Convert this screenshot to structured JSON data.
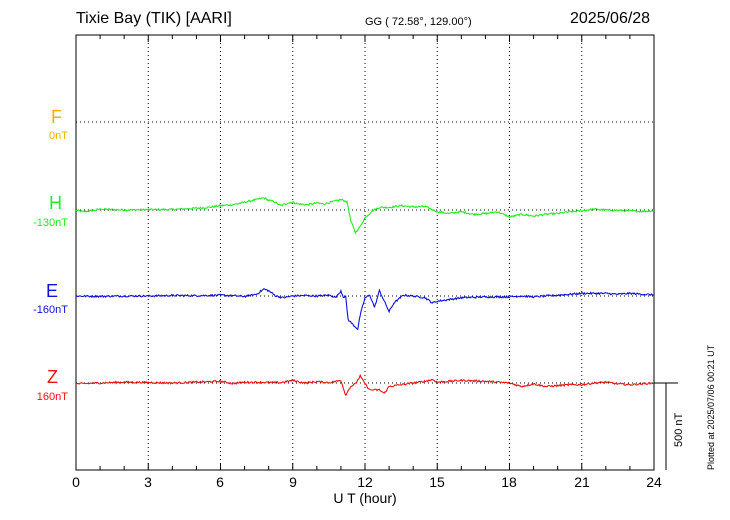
{
  "header": {
    "station": "Tixie Bay (TIK)  [AARI]",
    "coords": "GG ( 72.58°, 129.00°)",
    "date": "2025/06/28"
  },
  "plotted_at": "Plotted at 2025/07/06 00:21 UT",
  "chart_data": {
    "type": "line",
    "xlabel": "U T (hour)",
    "xlim": [
      0,
      24
    ],
    "xticks": [
      "0",
      "3",
      "6",
      "9",
      "12",
      "15",
      "18",
      "21",
      "24"
    ],
    "scale_bar": "500 nT",
    "series": [
      {
        "name": "F",
        "baseline_label": "0nT",
        "color": "#f0b000",
        "values": []
      },
      {
        "name": "H",
        "baseline_label": "-130nT",
        "color": "#22ee22",
        "values": [
          [
            0,
            -1
          ],
          [
            0.3,
            -10
          ],
          [
            0.6,
            -5
          ],
          [
            1,
            5
          ],
          [
            2,
            0
          ],
          [
            3,
            2
          ],
          [
            4,
            3
          ],
          [
            5,
            10
          ],
          [
            5.5,
            15
          ],
          [
            6,
            25
          ],
          [
            6.5,
            30
          ],
          [
            7,
            45
          ],
          [
            7.5,
            60
          ],
          [
            7.8,
            70
          ],
          [
            8,
            55
          ],
          [
            8.2,
            50
          ],
          [
            8.5,
            25
          ],
          [
            8.8,
            40
          ],
          [
            9,
            45
          ],
          [
            9.2,
            35
          ],
          [
            9.6,
            30
          ],
          [
            10,
            40
          ],
          [
            10.3,
            35
          ],
          [
            10.6,
            45
          ],
          [
            11,
            60
          ],
          [
            11.2,
            50
          ],
          [
            11.25,
            45
          ],
          [
            11.3,
            20
          ],
          [
            11.4,
            -60
          ],
          [
            11.6,
            -130
          ],
          [
            11.8,
            -95
          ],
          [
            12,
            -45
          ],
          [
            12.3,
            -5
          ],
          [
            12.6,
            15
          ],
          [
            13,
            15
          ],
          [
            13.5,
            25
          ],
          [
            14,
            18
          ],
          [
            14.5,
            20
          ],
          [
            14.8,
            2
          ],
          [
            15,
            -10
          ],
          [
            15.5,
            -20
          ],
          [
            16,
            -10
          ],
          [
            16.5,
            -25
          ],
          [
            17,
            -20
          ],
          [
            17.5,
            -10
          ],
          [
            18,
            -40
          ],
          [
            18.5,
            -25
          ],
          [
            19,
            -35
          ],
          [
            19.5,
            -25
          ],
          [
            20,
            -20
          ],
          [
            20.5,
            -10
          ],
          [
            21,
            -5
          ],
          [
            21.5,
            5
          ],
          [
            22,
            0
          ],
          [
            22.5,
            -2
          ],
          [
            23,
            -5
          ],
          [
            23.5,
            -8
          ],
          [
            24,
            -4
          ]
        ]
      },
      {
        "name": "E",
        "baseline_label": "-160nT",
        "color": "#1010dd",
        "values": [
          [
            0,
            0
          ],
          [
            1,
            -2
          ],
          [
            2,
            0
          ],
          [
            3,
            0
          ],
          [
            4,
            3
          ],
          [
            5,
            2
          ],
          [
            6,
            5
          ],
          [
            7,
            -2
          ],
          [
            7.5,
            10
          ],
          [
            7.8,
            40
          ],
          [
            8,
            30
          ],
          [
            8.3,
            0
          ],
          [
            8.6,
            -10
          ],
          [
            9,
            0
          ],
          [
            9.5,
            3
          ],
          [
            10,
            0
          ],
          [
            10.5,
            5
          ],
          [
            10.8,
            -8
          ],
          [
            11,
            30
          ],
          [
            11.1,
            -5
          ],
          [
            11.2,
            -5
          ],
          [
            11.3,
            -135
          ],
          [
            11.5,
            -165
          ],
          [
            11.7,
            -190
          ],
          [
            11.8,
            -110
          ],
          [
            12,
            -10
          ],
          [
            12.2,
            5
          ],
          [
            12.4,
            -65
          ],
          [
            12.6,
            30
          ],
          [
            12.8,
            -30
          ],
          [
            13,
            -90
          ],
          [
            13.2,
            -40
          ],
          [
            13.6,
            5
          ],
          [
            14,
            0
          ],
          [
            14.5,
            -10
          ],
          [
            14.8,
            -40
          ],
          [
            15,
            -30
          ],
          [
            15.5,
            -20
          ],
          [
            16,
            -10
          ],
          [
            17,
            -5
          ],
          [
            18,
            -5
          ],
          [
            18.5,
            0
          ],
          [
            19,
            -5
          ],
          [
            20,
            5
          ],
          [
            20.5,
            10
          ],
          [
            21,
            15
          ],
          [
            22,
            15
          ],
          [
            22.5,
            10
          ],
          [
            23,
            15
          ],
          [
            24,
            6
          ]
        ]
      },
      {
        "name": "Z",
        "baseline_label": "160nT",
        "color": "#ee1111",
        "values": [
          [
            0,
            -5
          ],
          [
            1,
            0
          ],
          [
            2,
            5
          ],
          [
            3,
            3
          ],
          [
            4,
            0
          ],
          [
            5,
            5
          ],
          [
            6,
            10
          ],
          [
            6.5,
            -3
          ],
          [
            7,
            5
          ],
          [
            8,
            3
          ],
          [
            8.5,
            2
          ],
          [
            9,
            15
          ],
          [
            9.5,
            0
          ],
          [
            10,
            8
          ],
          [
            10.5,
            2
          ],
          [
            11,
            15
          ],
          [
            11.2,
            -70
          ],
          [
            11.4,
            -20
          ],
          [
            11.6,
            -5
          ],
          [
            11.8,
            40
          ],
          [
            12,
            -5
          ],
          [
            12.2,
            -40
          ],
          [
            12.6,
            -40
          ],
          [
            12.8,
            -60
          ],
          [
            13,
            -20
          ],
          [
            13.5,
            -10
          ],
          [
            14,
            0
          ],
          [
            14.5,
            10
          ],
          [
            14.8,
            20
          ],
          [
            15,
            5
          ],
          [
            15.5,
            10
          ],
          [
            16,
            15
          ],
          [
            17,
            10
          ],
          [
            18,
            0
          ],
          [
            18.5,
            -20
          ],
          [
            19,
            -5
          ],
          [
            19.5,
            -20
          ],
          [
            20,
            -15
          ],
          [
            20.5,
            -10
          ],
          [
            21,
            -10
          ],
          [
            21.5,
            0
          ],
          [
            22,
            5
          ],
          [
            22.5,
            -5
          ],
          [
            23,
            -10
          ],
          [
            23.5,
            -5
          ],
          [
            24,
            0
          ]
        ]
      }
    ]
  }
}
